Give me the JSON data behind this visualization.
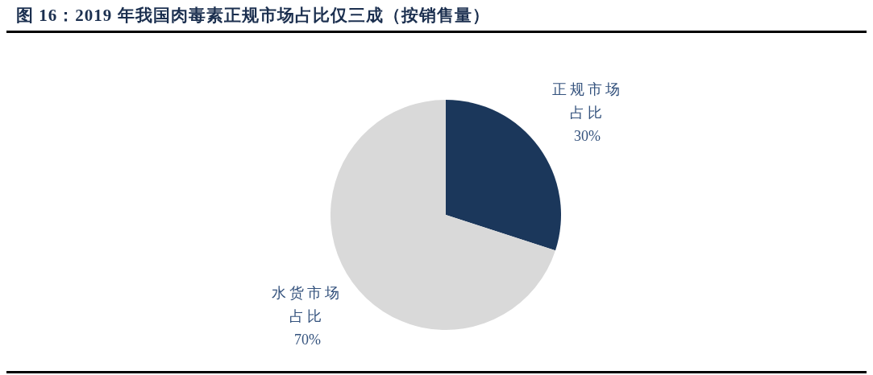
{
  "chart_data": {
    "type": "pie",
    "title": "图 16：2019 年我国肉毒素正规市场占比仅三成（按销售量）",
    "categories": [
      "正规市场占比",
      "水货市场占比"
    ],
    "values": [
      30,
      70
    ],
    "value_labels": [
      "30%",
      "70%"
    ],
    "colors": [
      "#1b375b",
      "#d9d9d9"
    ]
  }
}
